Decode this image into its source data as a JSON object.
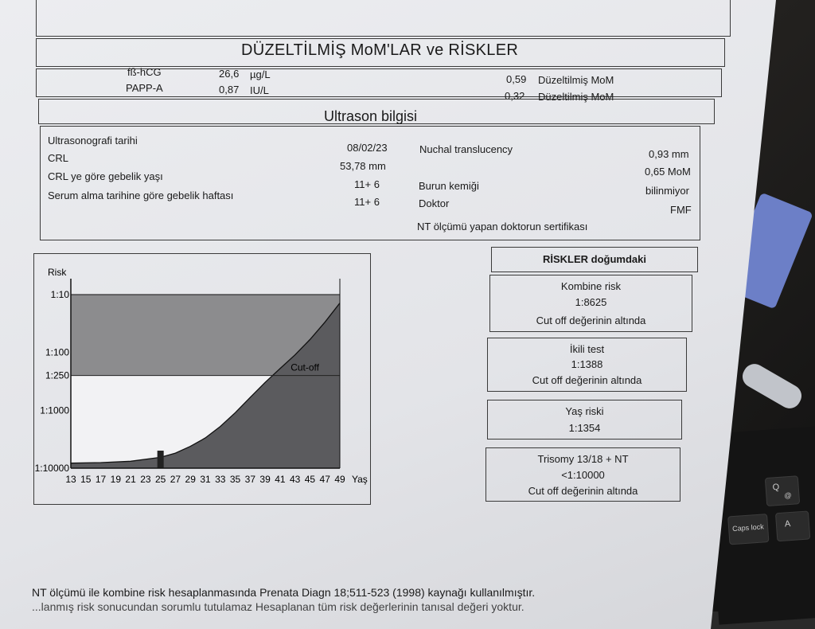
{
  "title": "DÜZELTİLMİŞ MoM'LAR ve RİSKLER",
  "markers": [
    {
      "name": "fß-hCG",
      "value": "26,6",
      "unit": "µg/L",
      "mom": "0,59",
      "mom_label": "Düzeltilmiş MoM"
    },
    {
      "name": "PAPP-A",
      "value": "0,87",
      "unit": "IU/L",
      "mom": "0,32",
      "mom_label": "Düzeltilmiş MoM"
    }
  ],
  "ultrasound": {
    "title": "Ultrason bilgisi",
    "left_rows": [
      {
        "label": "Ultrasonografi tarihi",
        "value": "08/02/23"
      },
      {
        "label": "CRL",
        "value": "53,78 mm"
      },
      {
        "label": "CRL ye göre gebelik yaşı",
        "value": "11+  6"
      },
      {
        "label": "Serum alma tarihine göre gebelik haftası",
        "value": "11+  6"
      }
    ],
    "right_rows": [
      {
        "label": "Nuchal translucency",
        "value": "0,93  mm"
      },
      {
        "label": "",
        "value": "0,65 MoM"
      },
      {
        "label": "Burun kemiği",
        "value": "bilinmiyor"
      },
      {
        "label": "Doktor",
        "value": "FMF"
      }
    ],
    "cert": "NT ölçümü yapan doktorun sertifikası"
  },
  "chart_data": {
    "type": "area",
    "ylabel": "Risk",
    "xlabel": "Yaş",
    "y_ticks": [
      "1:10",
      "1:100",
      "1:250",
      "1:1000",
      "1:10000"
    ],
    "x_ticks": [
      "13",
      "15",
      "17",
      "19",
      "21",
      "23",
      "25",
      "27",
      "29",
      "31",
      "33",
      "35",
      "37",
      "39",
      "41",
      "43",
      "45",
      "47",
      "49"
    ],
    "xlim": [
      13,
      49
    ],
    "ylim_denominator": [
      10,
      10000
    ],
    "y_scale": "log",
    "cutoff": {
      "value": 250,
      "label": "Cut-off"
    },
    "series": [
      {
        "x": [
          13,
          17,
          21,
          25,
          27,
          29,
          31,
          33,
          35,
          37,
          39,
          41,
          43,
          45,
          47,
          49
        ],
        "y": [
          8200,
          8000,
          7600,
          6500,
          5500,
          4200,
          3000,
          1900,
          1100,
          600,
          330,
          190,
          110,
          60,
          30,
          14
        ]
      }
    ],
    "marker_x": 25,
    "grid": false
  },
  "risks": {
    "header": "RİSKLER doğumdaki",
    "cards": [
      {
        "title": "Kombine risk",
        "value": "1:8625",
        "note": "Cut off değerinin altında"
      },
      {
        "title": "İkili test",
        "value": "1:1388",
        "note": "Cut off değerinin altında"
      },
      {
        "title": "Yaş riski",
        "value": "1:1354",
        "note": ""
      },
      {
        "title": "Trisomy 13/18 + NT",
        "value": "<1:10000",
        "note": "Cut off değerinin altında"
      }
    ]
  },
  "footer": {
    "line1": "NT ölçümü ile  kombine risk hesaplanmasında Prenata Diagn 18;511-523 (1998) kaynağı kullanılmıştır.",
    "line2": "...lanmış risk sonucundan sorumlu tutulamaz Hesaplanan tüm risk değerlerinin  tanısal değeri yoktur."
  },
  "keyboard": {
    "keys": [
      "Q",
      "@",
      "A",
      "Caps lock"
    ]
  }
}
